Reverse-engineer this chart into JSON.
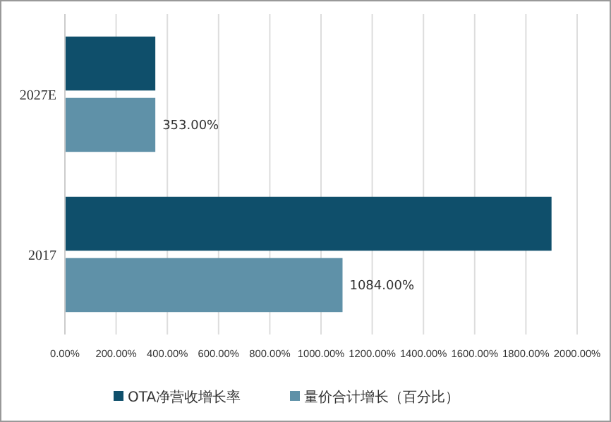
{
  "chart_data": {
    "type": "bar",
    "orientation": "horizontal",
    "categories": [
      "2027E",
      "2017"
    ],
    "series": [
      {
        "name": "OTA净营收增长率",
        "color": "#0f4f6b",
        "values": [
          353,
          1900
        ]
      },
      {
        "name": "量价合计增长（百分比）",
        "color": "#5f91a8",
        "values": [
          353,
          1084
        ],
        "value_labels": [
          "353.00%",
          "1084.00%"
        ]
      }
    ],
    "xlim": [
      0,
      2000
    ],
    "xticks": [
      {
        "value": 0,
        "label": "0.00%"
      },
      {
        "value": 200,
        "label": "200.00%"
      },
      {
        "value": 400,
        "label": "400.00%"
      },
      {
        "value": 600,
        "label": "600.00%"
      },
      {
        "value": 800,
        "label": "800.00%"
      },
      {
        "value": 1000,
        "label": "1000.00%"
      },
      {
        "value": 1200,
        "label": "1200.00%"
      },
      {
        "value": 1400,
        "label": "1400.00%"
      },
      {
        "value": 1600,
        "label": "1600.00%"
      },
      {
        "value": 1800,
        "label": "1800.00%"
      },
      {
        "value": 2000,
        "label": "2000.00%"
      }
    ],
    "grid": "x",
    "legend": "bottom"
  }
}
